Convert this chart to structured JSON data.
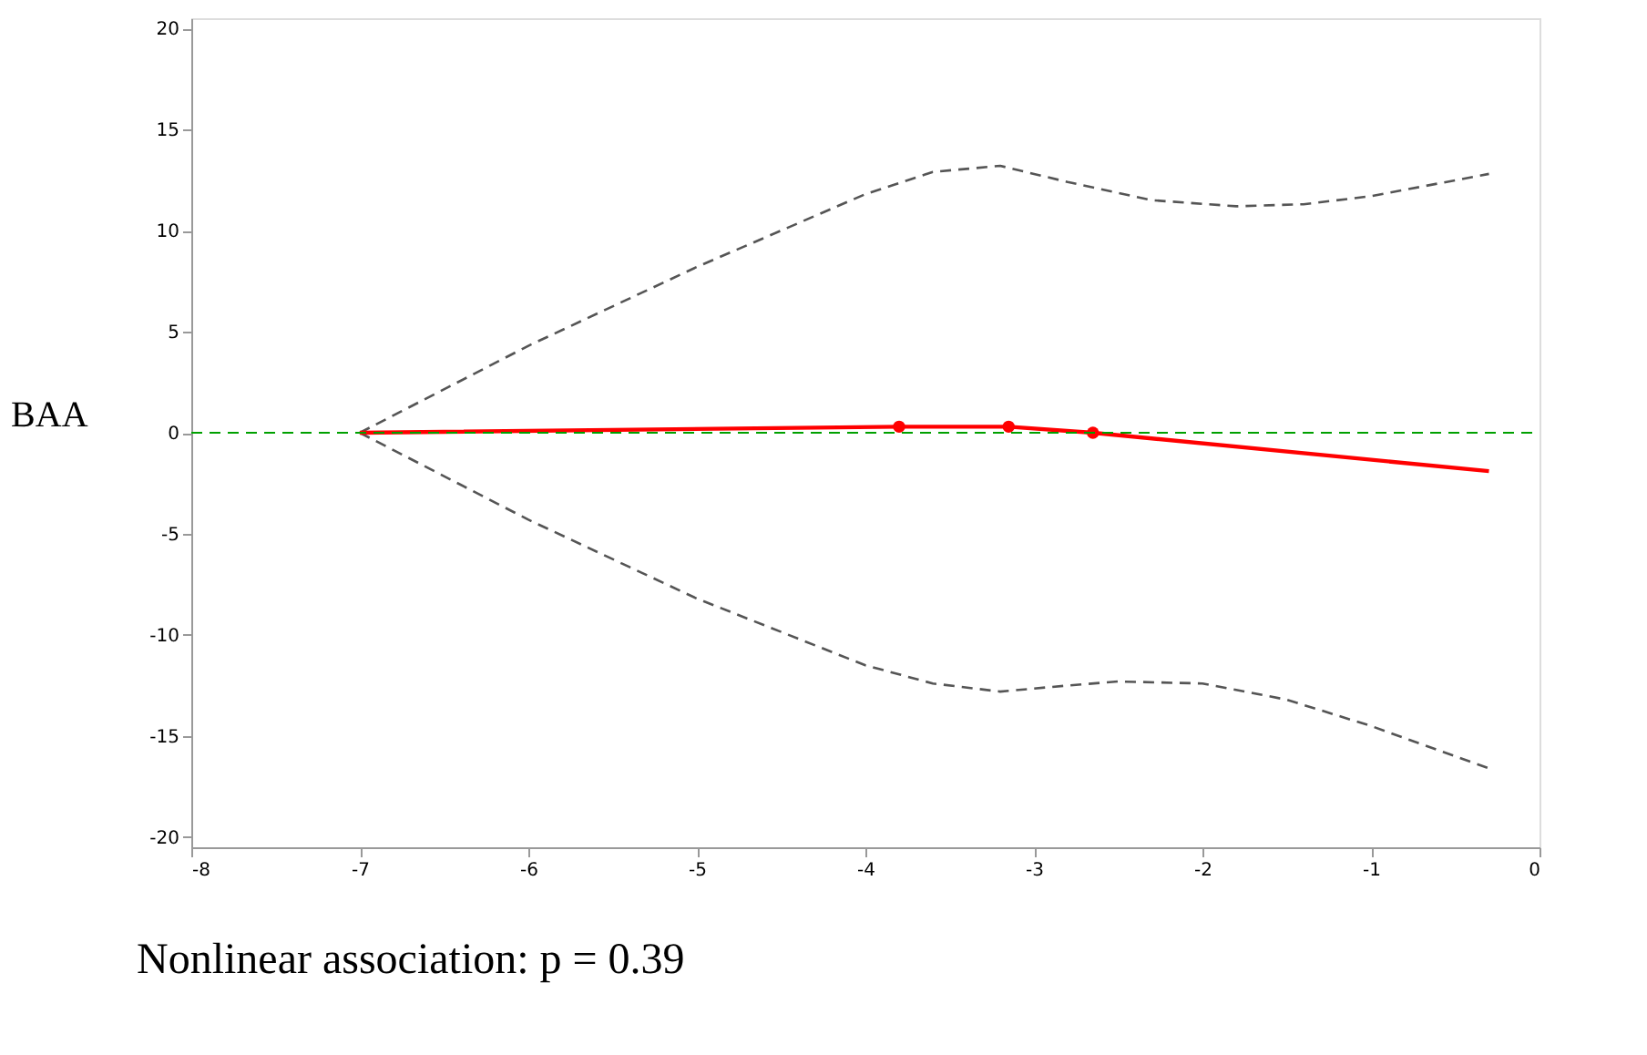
{
  "chart_data": {
    "type": "line",
    "ylabel": "BAA",
    "annotations": [
      "Nonlinear association: p = 0.39"
    ],
    "xlim": [
      -8,
      0
    ],
    "xticks": [
      -8,
      -7,
      -6,
      -5,
      -4,
      -3,
      -2,
      -1,
      0
    ],
    "ylim": [
      -20.5,
      20.5
    ],
    "yticks": [
      -20,
      -15,
      -10,
      -5,
      0,
      5,
      10,
      15,
      20
    ],
    "grid": false,
    "series": [
      {
        "color": "#555555",
        "line_style": "dashed",
        "marker": "none",
        "x": [
          -7,
          -6,
          -5,
          -4,
          -3.6,
          -3.2,
          -2.8,
          -2.3,
          -1.8,
          -1.4,
          -1,
          -0.3
        ],
        "values": [
          0,
          4.3,
          8.2,
          11.8,
          12.9,
          13.2,
          12.4,
          11.5,
          11.2,
          11.3,
          11.7,
          12.8
        ]
      },
      {
        "color": "#555555",
        "line_style": "dashed",
        "marker": "none",
        "x": [
          -7,
          -6,
          -5,
          -4,
          -3.6,
          -3.2,
          -2.8,
          -2.5,
          -2,
          -1.5,
          -1,
          -0.3
        ],
        "values": [
          0,
          -4.3,
          -8.2,
          -11.5,
          -12.4,
          -12.8,
          -12.5,
          -12.3,
          -12.4,
          -13.2,
          -14.5,
          -16.6
        ]
      },
      {
        "color": "#ff0000",
        "line_style": "solid",
        "marker": "none",
        "x": [
          -7,
          -3.8,
          -3.15,
          -2.65,
          -0.3
        ],
        "values": [
          0,
          0.3,
          0.3,
          0,
          -1.9
        ]
      },
      {
        "type": "scatter",
        "color": "#ff0000",
        "marker": "circle",
        "x": [
          -3.8,
          -3.15,
          -2.65
        ],
        "values": [
          0.3,
          0.3,
          0
        ]
      }
    ],
    "ref_lines": [
      {
        "axis": "y",
        "value": 0,
        "color": "#00a000",
        "line_style": "dashed"
      }
    ]
  }
}
